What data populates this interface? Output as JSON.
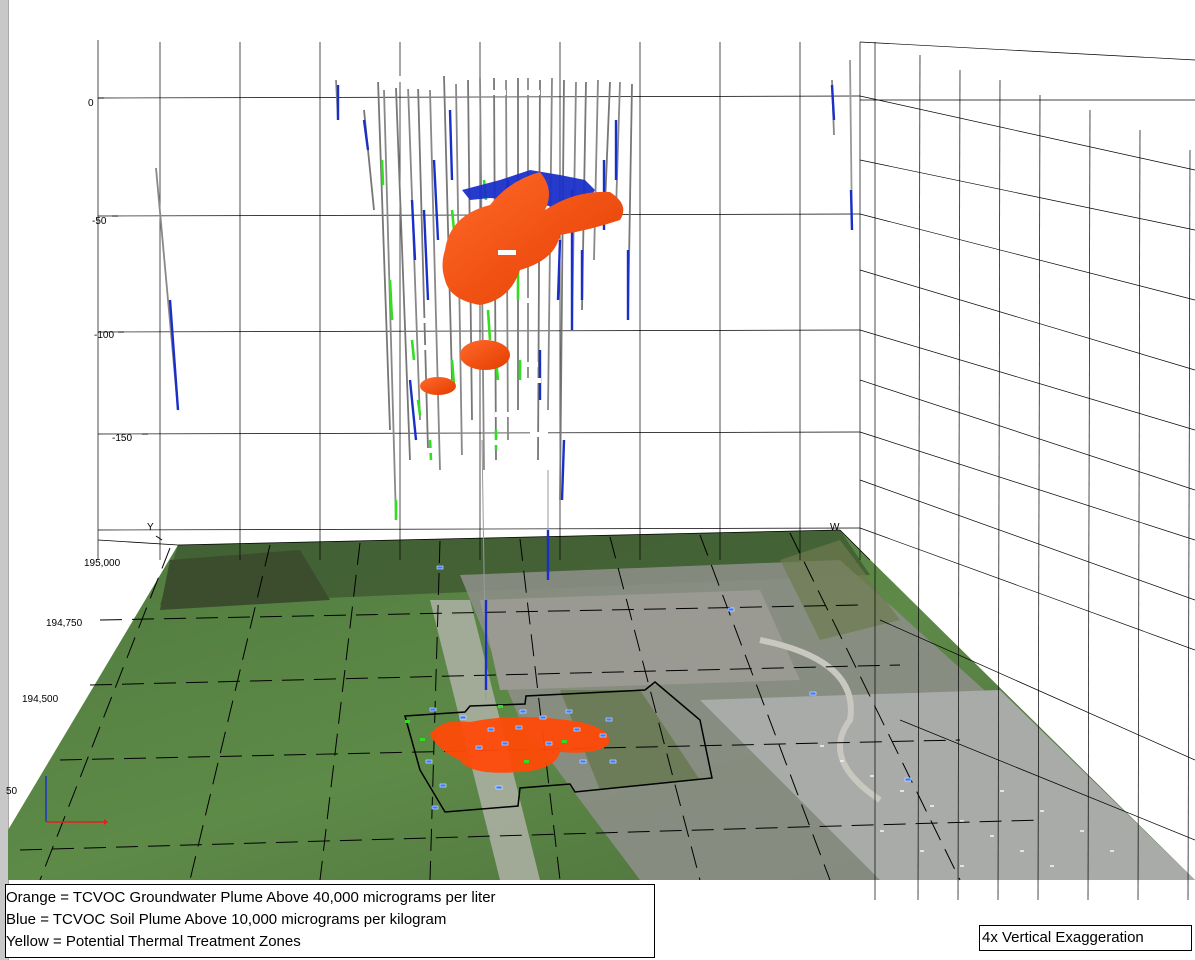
{
  "view": {
    "vertical_axis": {
      "labels": [
        "0",
        "-50",
        "-100",
        "-150"
      ]
    },
    "horizontal_axis": {
      "letter": "Y",
      "labels": [
        "195,000",
        "194,750",
        "194,500",
        "50"
      ]
    },
    "corner_letter": "W"
  },
  "legend": {
    "items": [
      {
        "label": "Orange = TCVOC Groundwater Plume Above 40,000 micrograms per liter",
        "color": "#ff4f10"
      },
      {
        "label": "Blue = TCVOC Soil Plume Above 10,000 micrograms per kilogram",
        "color": "#1a2fc8"
      },
      {
        "label": "Yellow = Potential Thermal Treatment Zones",
        "color": "#ffe600"
      }
    ]
  },
  "note": {
    "label": "4x Vertical Exaggeration"
  },
  "colors": {
    "groundwater": "#ff4f10",
    "soil": "#1a2fc8",
    "sample_marker": "#33dd22",
    "grid": "#000000"
  }
}
